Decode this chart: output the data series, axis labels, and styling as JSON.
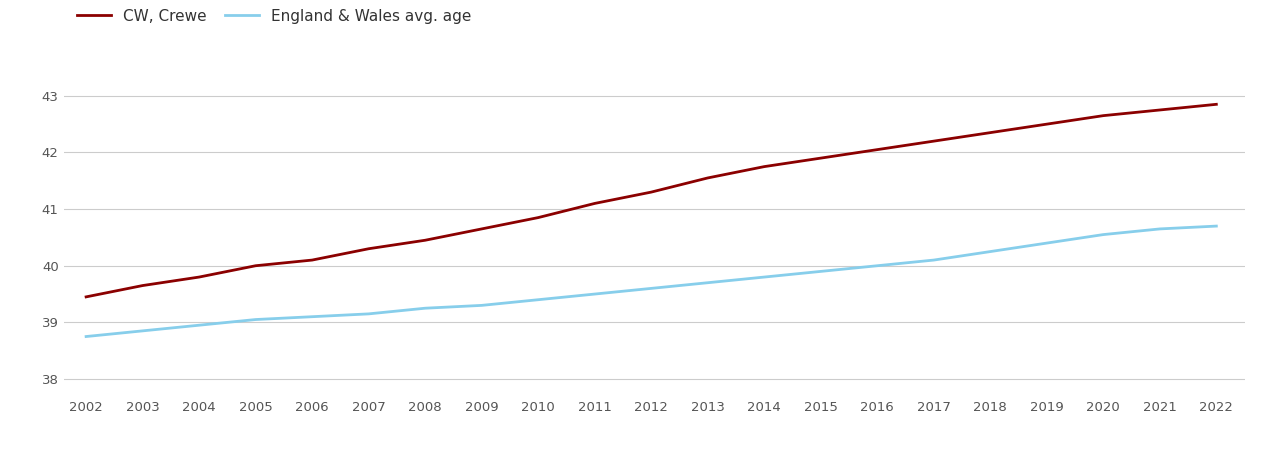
{
  "years": [
    2002,
    2003,
    2004,
    2005,
    2006,
    2007,
    2008,
    2009,
    2010,
    2011,
    2012,
    2013,
    2014,
    2015,
    2016,
    2017,
    2018,
    2019,
    2020,
    2021,
    2022
  ],
  "crewe": [
    39.45,
    39.65,
    39.8,
    40.0,
    40.1,
    40.3,
    40.45,
    40.65,
    40.85,
    41.1,
    41.3,
    41.55,
    41.75,
    41.9,
    42.05,
    42.2,
    42.35,
    42.5,
    42.65,
    42.75,
    42.85
  ],
  "england_wales": [
    38.75,
    38.85,
    38.95,
    39.05,
    39.1,
    39.15,
    39.25,
    39.3,
    39.4,
    39.5,
    39.6,
    39.7,
    39.8,
    39.9,
    40.0,
    40.1,
    40.25,
    40.4,
    40.55,
    40.65,
    40.7
  ],
  "crewe_color": "#8B0000",
  "ew_color": "#87CEEB",
  "background_color": "#f2f2f2",
  "legend_crewe": "CW, Crewe",
  "legend_ew": "England & Wales avg. age",
  "ylim": [
    37.7,
    43.5
  ],
  "yticks": [
    38,
    39,
    40,
    41,
    42,
    43
  ],
  "line_width": 2.0,
  "grid_color": "#cccccc"
}
